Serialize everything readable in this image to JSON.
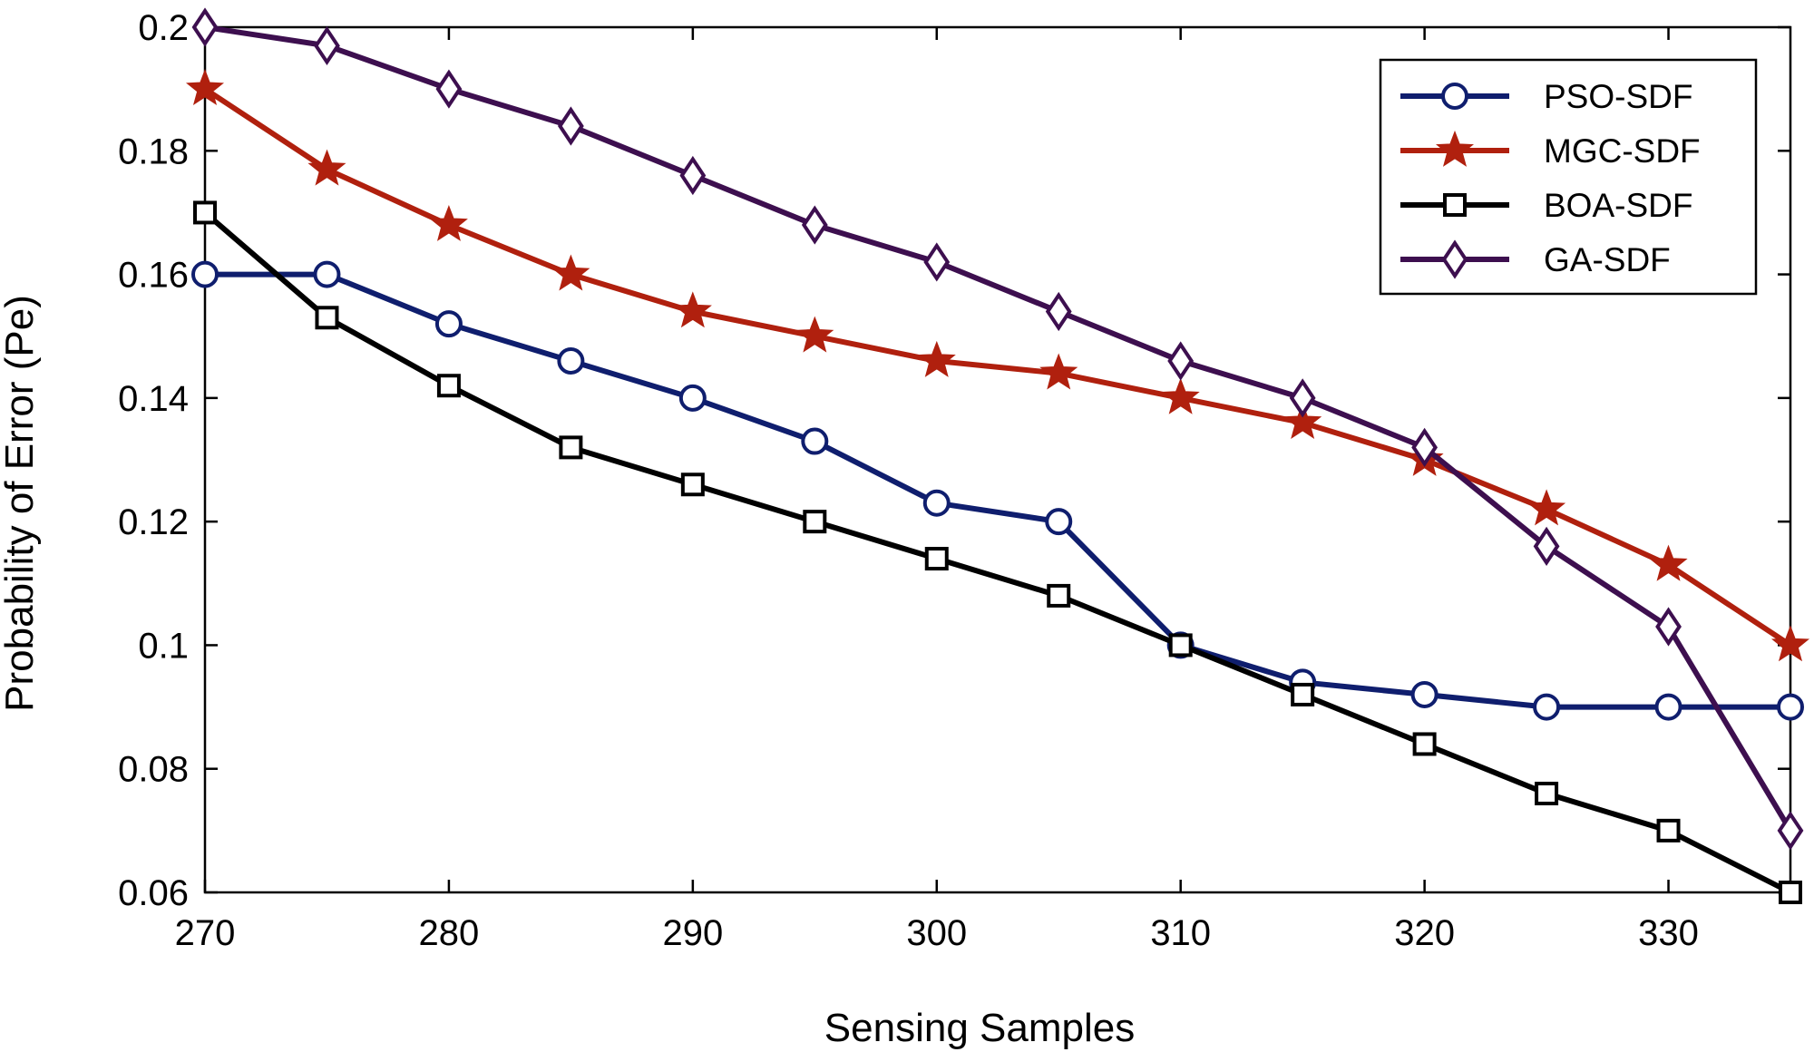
{
  "chart_data": {
    "type": "line",
    "title": "",
    "xlabel": "Sensing Samples",
    "ylabel": "Probability of Error (Pe)",
    "xlim": [
      270,
      335
    ],
    "ylim": [
      0.06,
      0.2
    ],
    "grid": false,
    "legend_position": "top-right",
    "x": [
      270,
      275,
      280,
      285,
      290,
      295,
      300,
      305,
      310,
      315,
      320,
      325,
      330,
      335
    ],
    "xticks": [
      270,
      280,
      290,
      300,
      310,
      320,
      330
    ],
    "xtick_labels": [
      "270",
      "280",
      "290",
      "300",
      "310",
      "320",
      "330"
    ],
    "yticks": [
      0.06,
      0.08,
      0.1,
      0.12,
      0.14,
      0.16,
      0.18,
      0.2
    ],
    "ytick_labels": [
      "0.06",
      "0.08",
      "0.1",
      "0.12",
      "0.14",
      "0.16",
      "0.18",
      "0.2"
    ],
    "series": [
      {
        "name": "PSO-SDF",
        "color": "#0f1e6e",
        "marker": "circle",
        "values": [
          0.16,
          0.16,
          0.152,
          0.146,
          0.14,
          0.133,
          0.123,
          0.12,
          0.1,
          0.094,
          0.092,
          0.09,
          0.09,
          0.09
        ]
      },
      {
        "name": "MGC-SDF",
        "color": "#b0200e",
        "marker": "star",
        "values": [
          0.19,
          0.177,
          0.168,
          0.16,
          0.154,
          0.15,
          0.146,
          0.144,
          0.14,
          0.136,
          0.13,
          0.122,
          0.113,
          0.1
        ]
      },
      {
        "name": "BOA-SDF",
        "color": "#000000",
        "marker": "square",
        "values": [
          0.17,
          0.153,
          0.142,
          0.132,
          0.126,
          0.12,
          0.114,
          0.108,
          0.1,
          0.092,
          0.084,
          0.076,
          0.07,
          0.06
        ]
      },
      {
        "name": "GA-SDF",
        "color": "#3d0f4f",
        "marker": "diamond",
        "values": [
          0.2,
          0.197,
          0.19,
          0.184,
          0.176,
          0.168,
          0.162,
          0.154,
          0.146,
          0.14,
          0.132,
          0.116,
          0.103,
          0.07
        ]
      }
    ]
  }
}
